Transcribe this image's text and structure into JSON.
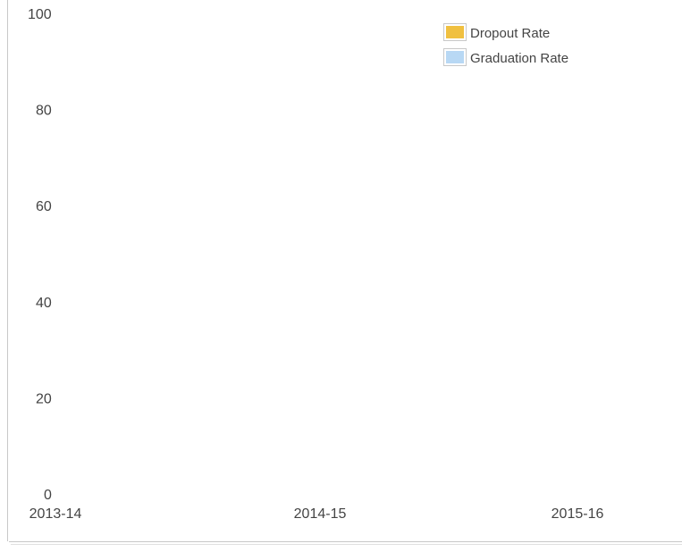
{
  "chart_data": {
    "type": "bar",
    "categories": [
      "2013-14",
      "2014-15",
      "2015-16"
    ],
    "series": [
      {
        "name": "Dropout Rate",
        "values": [
          null,
          null,
          null
        ],
        "color": "#f0c040"
      },
      {
        "name": "Graduation Rate",
        "values": [
          null,
          null,
          null
        ],
        "color": "#b8d8f4"
      }
    ],
    "yticks": [
      "0",
      "20",
      "40",
      "60",
      "80",
      "100"
    ],
    "ylim": [
      0,
      100
    ],
    "title": "",
    "xlabel": "",
    "ylabel": "",
    "grid": false,
    "legend": "top-right"
  }
}
